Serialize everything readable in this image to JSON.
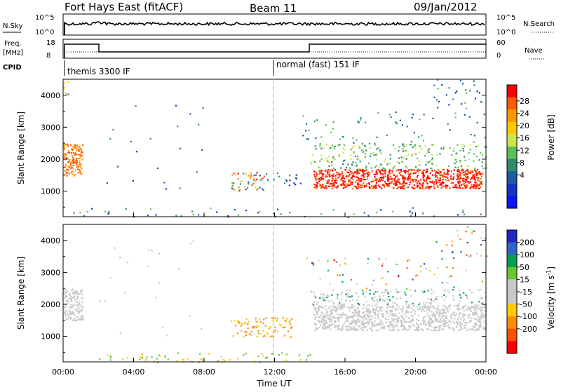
{
  "header": {
    "station": "Fort Hays East (fitACF)",
    "beam": "Beam 11",
    "date": "09/Jan/2012"
  },
  "top_panels": {
    "nsky_label": "N.Sky",
    "nsearch_label": "N.Search",
    "noise_ticks_left": [
      "10^5",
      "10^0"
    ],
    "noise_ticks_right": [
      "10^5",
      "10^0"
    ],
    "freq_label_line1": "Freq.",
    "freq_label_line2": "[MHz]",
    "freq_ticks_left": [
      "18",
      "8"
    ],
    "nave_label": "Nave",
    "nave_ticks_right": [
      "60",
      "0"
    ],
    "cpid_label": "CPID",
    "cpid_segments": [
      "themis 3300 IF",
      "normal (fast) 151 IF"
    ]
  },
  "chart_data": [
    {
      "type": "heatmap",
      "name": "power",
      "ylabel": "Slant Range [km]",
      "yticks": [
        1000,
        2000,
        3000,
        4000
      ],
      "ylim": [
        200,
        4500
      ],
      "xlim_hours": [
        0,
        24
      ],
      "colorbar": {
        "label": "Power [dB]",
        "ticks": [
          "28",
          "24",
          "20",
          "16",
          "12",
          "8",
          "4"
        ],
        "colors": [
          "#ff0000",
          "#ff5a00",
          "#ff9600",
          "#ffc800",
          "#c8e650",
          "#5fbe5a",
          "#2d8c6e",
          "#1e5aa0",
          "#1432c8",
          "#0a14ff"
        ]
      }
    },
    {
      "type": "heatmap",
      "name": "velocity",
      "ylabel": "Slant Range [km]",
      "yticks": [
        1000,
        2000,
        3000,
        4000
      ],
      "ylim": [
        200,
        4500
      ],
      "xlim_hours": [
        0,
        24
      ],
      "colorbar": {
        "label": "Velocity [m s-1]",
        "label_parts": [
          "Velocity [m s",
          "-1",
          "]"
        ],
        "ticks": [
          "200",
          "100",
          "50",
          "15",
          "-15",
          "-50",
          "-100",
          "-200"
        ],
        "colors": [
          "#1e28c8",
          "#3264c8",
          "#00a050",
          "#64c832",
          "#c8c8c8",
          "#c8c8c8",
          "#ffc800",
          "#ff8c00",
          "#ff5000",
          "#ff0000"
        ]
      }
    }
  ],
  "xaxis": {
    "ticks": [
      "00:00",
      "04:00",
      "08:00",
      "12:00",
      "16:00",
      "20:00",
      "00:00"
    ],
    "label": "Time UT"
  }
}
